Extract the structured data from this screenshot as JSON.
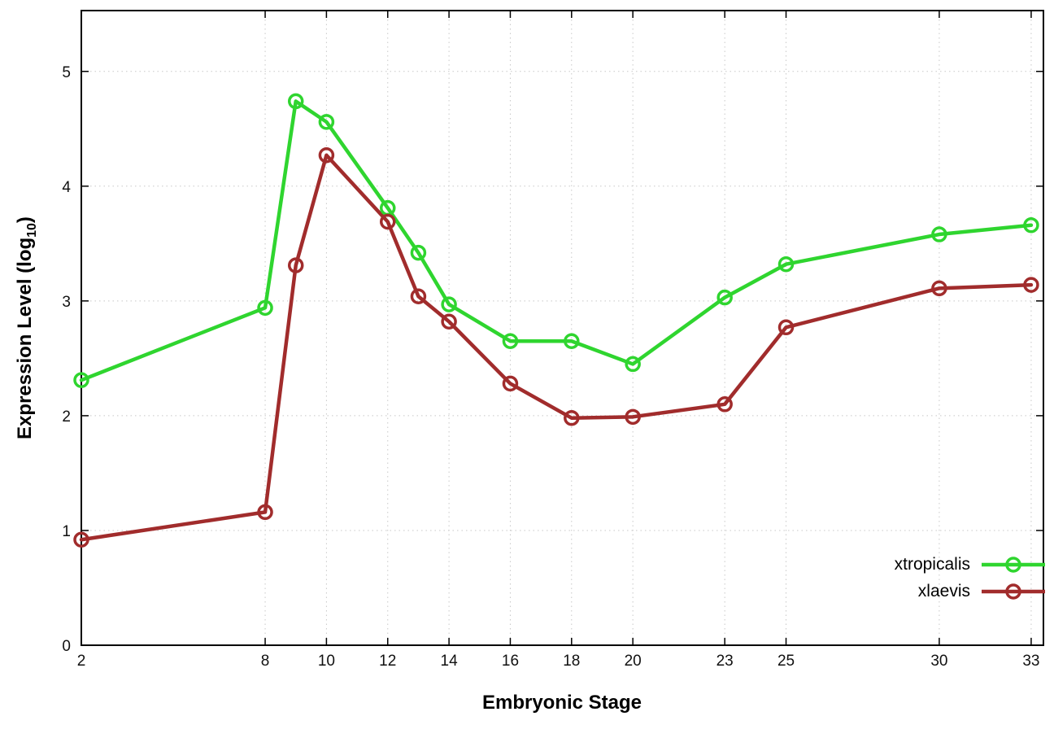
{
  "chart_data": {
    "type": "line",
    "title": "",
    "xlabel": "Embryonic Stage",
    "ylabel": "Expression Level (log10)",
    "ylabel_parts": {
      "prefix": "Expression Level (log",
      "sub": "10",
      "suffix": ")"
    },
    "x": [
      2,
      8,
      9,
      10,
      12,
      13,
      14,
      16,
      18,
      20,
      23,
      25,
      30,
      33
    ],
    "series": [
      {
        "name": "xtropicalis",
        "color": "#2fd52f",
        "values": [
          2.31,
          2.94,
          4.74,
          4.56,
          3.81,
          3.42,
          2.97,
          2.65,
          2.65,
          2.45,
          3.03,
          3.32,
          3.58,
          3.66
        ]
      },
      {
        "name": "xlaevis",
        "color": "#a12c2c",
        "values": [
          0.92,
          1.16,
          3.31,
          4.27,
          3.69,
          3.04,
          2.82,
          2.28,
          1.98,
          1.99,
          2.1,
          2.77,
          3.11,
          3.14
        ]
      }
    ],
    "xticks": [
      2,
      8,
      10,
      12,
      14,
      16,
      18,
      20,
      23,
      25,
      30,
      33
    ],
    "yticks": [
      0,
      1,
      2,
      3,
      4,
      5
    ],
    "xlim": [
      2,
      33.4
    ],
    "ylim": [
      0,
      5.53
    ],
    "grid": true,
    "legend_position": "bottom-right",
    "marker": "open-circle",
    "background_color": "#ffffff",
    "border_color": "#000000",
    "grid_color": "#c8c8c8"
  }
}
